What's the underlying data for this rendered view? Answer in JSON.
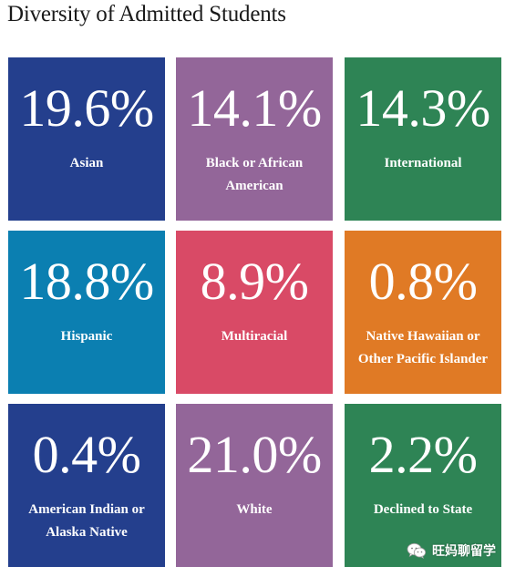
{
  "title": "Diversity of Admitted Students",
  "tiles": [
    {
      "value": "19.6%",
      "label": "Asian",
      "color": "#243f8d"
    },
    {
      "value": "14.1%",
      "label": "Black or African American",
      "color": "#936699"
    },
    {
      "value": "14.3%",
      "label": "International",
      "color": "#2e8455"
    },
    {
      "value": "18.8%",
      "label": "Hispanic",
      "color": "#0b7fb1"
    },
    {
      "value": "8.9%",
      "label": "Multiracial",
      "color": "#d94a66"
    },
    {
      "value": "0.8%",
      "label": "Native Hawaiian or Other Pacific Islander",
      "color": "#e07a25"
    },
    {
      "value": "0.4%",
      "label": "American Indian or Alaska Native",
      "color": "#243f8d"
    },
    {
      "value": "21.0%",
      "label": "White",
      "color": "#936699"
    },
    {
      "value": "2.2%",
      "label": "Declined to State",
      "color": "#2e8455"
    }
  ],
  "watermark": {
    "text": "旺妈聊留学",
    "icon": "wechat-icon"
  }
}
